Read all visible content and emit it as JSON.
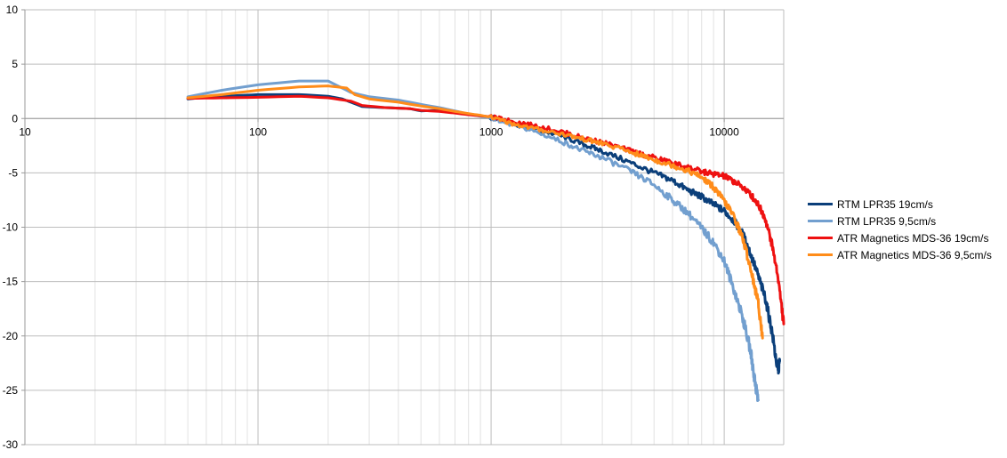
{
  "chart_data": {
    "type": "line",
    "x_scale": "log",
    "xlim": [
      10,
      18000
    ],
    "ylim": [
      -30,
      10
    ],
    "x_ticks": [
      10,
      100,
      1000,
      10000
    ],
    "x_tick_labels": [
      "10",
      "100",
      "1000",
      "10000"
    ],
    "y_ticks": [
      10,
      5,
      0,
      -5,
      -10,
      -15,
      -20,
      -25,
      -30
    ],
    "y_tick_labels": [
      "10",
      "5",
      "0",
      "-5",
      "-10",
      "-15",
      "-20",
      "-25",
      "-30"
    ],
    "grid": "major and minor (log)",
    "legend_position": "right",
    "series": [
      {
        "name": "RTM LPR35 19cm/s",
        "color": "#0b3f7a",
        "points": [
          [
            50,
            1.8
          ],
          [
            60,
            1.95
          ],
          [
            80,
            2.1
          ],
          [
            100,
            2.2
          ],
          [
            150,
            2.2
          ],
          [
            200,
            2.05
          ],
          [
            230,
            1.8
          ],
          [
            250,
            1.5
          ],
          [
            280,
            1.1
          ],
          [
            350,
            1.0
          ],
          [
            450,
            0.9
          ],
          [
            500,
            0.7
          ],
          [
            600,
            0.75
          ],
          [
            700,
            0.55
          ],
          [
            800,
            0.4
          ],
          [
            900,
            0.25
          ],
          [
            1000,
            0.1
          ],
          [
            1200,
            -0.4
          ],
          [
            1500,
            -0.9
          ],
          [
            2000,
            -1.6
          ],
          [
            2500,
            -2.4
          ],
          [
            3000,
            -3.0
          ],
          [
            4000,
            -4.1
          ],
          [
            5000,
            -5.0
          ],
          [
            6000,
            -5.7
          ],
          [
            7000,
            -6.6
          ],
          [
            8000,
            -7.2
          ],
          [
            9000,
            -7.9
          ],
          [
            10000,
            -8.5
          ],
          [
            11000,
            -9.4
          ],
          [
            12000,
            -10.6
          ],
          [
            13000,
            -12.5
          ],
          [
            14000,
            -14.5
          ],
          [
            15000,
            -16.5
          ],
          [
            16000,
            -19.5
          ],
          [
            17000,
            -23.3
          ],
          [
            17300,
            -22.3
          ]
        ]
      },
      {
        "name": "RTM LPR35 9,5cm/s",
        "color": "#729fcf",
        "points": [
          [
            50,
            2.0
          ],
          [
            70,
            2.6
          ],
          [
            100,
            3.1
          ],
          [
            150,
            3.45
          ],
          [
            200,
            3.45
          ],
          [
            250,
            2.4
          ],
          [
            300,
            2.0
          ],
          [
            400,
            1.7
          ],
          [
            500,
            1.3
          ],
          [
            600,
            1.0
          ],
          [
            700,
            0.7
          ],
          [
            800,
            0.4
          ],
          [
            900,
            0.2
          ],
          [
            1000,
            0.05
          ],
          [
            1200,
            -0.5
          ],
          [
            1500,
            -1.1
          ],
          [
            2000,
            -2.1
          ],
          [
            2500,
            -3.0
          ],
          [
            3000,
            -3.6
          ],
          [
            4000,
            -4.9
          ],
          [
            5000,
            -6.1
          ],
          [
            6000,
            -7.5
          ],
          [
            7000,
            -8.7
          ],
          [
            8000,
            -10.1
          ],
          [
            9000,
            -11.4
          ],
          [
            10000,
            -13.1
          ],
          [
            11000,
            -15.7
          ],
          [
            12000,
            -18.3
          ],
          [
            13000,
            -21.5
          ],
          [
            13500,
            -24.0
          ],
          [
            14000,
            -25.9
          ]
        ]
      },
      {
        "name": "ATR Magnetics MDS-36 19cm/s",
        "color": "#ee1111",
        "points": [
          [
            50,
            1.85
          ],
          [
            70,
            1.9
          ],
          [
            100,
            1.95
          ],
          [
            150,
            2.05
          ],
          [
            200,
            1.9
          ],
          [
            250,
            1.6
          ],
          [
            280,
            1.2
          ],
          [
            350,
            1.0
          ],
          [
            450,
            0.9
          ],
          [
            500,
            0.75
          ],
          [
            600,
            0.65
          ],
          [
            700,
            0.5
          ],
          [
            800,
            0.35
          ],
          [
            900,
            0.25
          ],
          [
            1000,
            0.15
          ],
          [
            1200,
            -0.2
          ],
          [
            1500,
            -0.6
          ],
          [
            2000,
            -1.2
          ],
          [
            2500,
            -1.8
          ],
          [
            3000,
            -2.2
          ],
          [
            4000,
            -3.0
          ],
          [
            5000,
            -3.6
          ],
          [
            6000,
            -4.1
          ],
          [
            7000,
            -4.5
          ],
          [
            8000,
            -4.9
          ],
          [
            9000,
            -5.1
          ],
          [
            10000,
            -5.3
          ],
          [
            11000,
            -5.8
          ],
          [
            12000,
            -6.3
          ],
          [
            13000,
            -7.0
          ],
          [
            14000,
            -7.9
          ],
          [
            15000,
            -9.2
          ],
          [
            16000,
            -11.5
          ],
          [
            17000,
            -14.5
          ],
          [
            18000,
            -18.9
          ]
        ]
      },
      {
        "name": "ATR Magnetics MDS-36 9,5cm/s",
        "color": "#ff8c1a",
        "points": [
          [
            50,
            1.9
          ],
          [
            70,
            2.2
          ],
          [
            100,
            2.6
          ],
          [
            150,
            2.9
          ],
          [
            200,
            3.0
          ],
          [
            240,
            2.8
          ],
          [
            260,
            2.2
          ],
          [
            300,
            1.8
          ],
          [
            400,
            1.5
          ],
          [
            500,
            1.15
          ],
          [
            600,
            0.9
          ],
          [
            700,
            0.65
          ],
          [
            800,
            0.45
          ],
          [
            900,
            0.3
          ],
          [
            1000,
            0.1
          ],
          [
            1200,
            -0.4
          ],
          [
            1500,
            -0.9
          ],
          [
            2000,
            -1.4
          ],
          [
            2500,
            -1.9
          ],
          [
            3000,
            -2.3
          ],
          [
            4000,
            -3.1
          ],
          [
            5000,
            -3.8
          ],
          [
            6000,
            -4.3
          ],
          [
            7000,
            -4.8
          ],
          [
            8000,
            -5.4
          ],
          [
            9000,
            -6.3
          ],
          [
            10000,
            -7.6
          ],
          [
            11000,
            -9.0
          ],
          [
            12000,
            -11.0
          ],
          [
            13000,
            -13.8
          ],
          [
            14000,
            -17.0
          ],
          [
            14600,
            -20.2
          ]
        ]
      }
    ]
  }
}
